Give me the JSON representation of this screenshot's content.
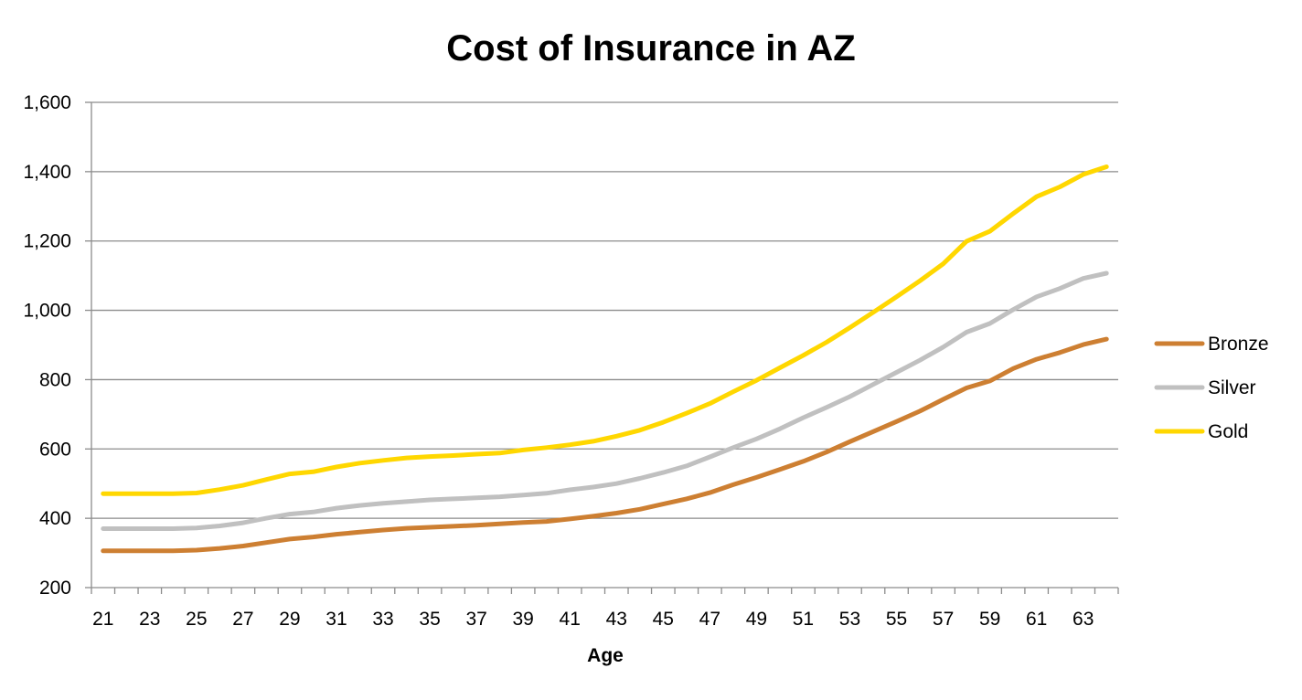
{
  "chart_data": {
    "type": "line",
    "title": "Cost of Insurance in AZ",
    "xlabel": "Age",
    "ylabel": "",
    "x": [
      21,
      22,
      23,
      24,
      25,
      26,
      27,
      28,
      29,
      30,
      31,
      32,
      33,
      34,
      35,
      36,
      37,
      38,
      39,
      40,
      41,
      42,
      43,
      44,
      45,
      46,
      47,
      48,
      49,
      50,
      51,
      52,
      53,
      54,
      55,
      56,
      57,
      58,
      59,
      60,
      61,
      62,
      63,
      64
    ],
    "xticks": [
      "21",
      "23",
      "25",
      "27",
      "29",
      "31",
      "33",
      "35",
      "37",
      "39",
      "41",
      "43",
      "45",
      "47",
      "49",
      "51",
      "53",
      "55",
      "57",
      "59",
      "61",
      "63"
    ],
    "ylim": [
      200,
      1600
    ],
    "yticks": [
      "200",
      "400",
      "600",
      "800",
      "1,000",
      "1,200",
      "1,400",
      "1,600"
    ],
    "grid": true,
    "legend_position": "right",
    "series": [
      {
        "name": "Bronze",
        "color": "#cd7f32",
        "values": [
          306,
          306,
          306,
          306,
          308,
          313,
          320,
          330,
          340,
          346,
          354,
          360,
          366,
          371,
          374,
          377,
          380,
          384,
          388,
          391,
          398,
          406,
          415,
          426,
          441,
          456,
          474,
          497,
          518,
          541,
          564,
          591,
          621,
          650,
          679,
          709,
          743,
          776,
          796,
          832,
          859,
          878,
          901,
          917
        ]
      },
      {
        "name": "Silver",
        "color": "#c0c0c0",
        "values": [
          370,
          370,
          370,
          370,
          372,
          378,
          387,
          400,
          412,
          418,
          429,
          437,
          443,
          448,
          453,
          456,
          459,
          462,
          467,
          472,
          482,
          490,
          500,
          515,
          532,
          551,
          577,
          604,
          629,
          658,
          690,
          720,
          751,
          786,
          821,
          856,
          894,
          937,
          962,
          1002,
          1039,
          1063,
          1092,
          1107
        ]
      },
      {
        "name": "Gold",
        "color": "#ffd700",
        "values": [
          471,
          471,
          471,
          471,
          473,
          483,
          495,
          512,
          528,
          534,
          548,
          559,
          567,
          574,
          578,
          581,
          585,
          588,
          597,
          604,
          612,
          622,
          637,
          654,
          677,
          703,
          731,
          765,
          798,
          834,
          870,
          908,
          950,
          994,
          1039,
          1085,
          1134,
          1199,
          1228,
          1279,
          1328,
          1356,
          1392,
          1414
        ]
      }
    ]
  }
}
